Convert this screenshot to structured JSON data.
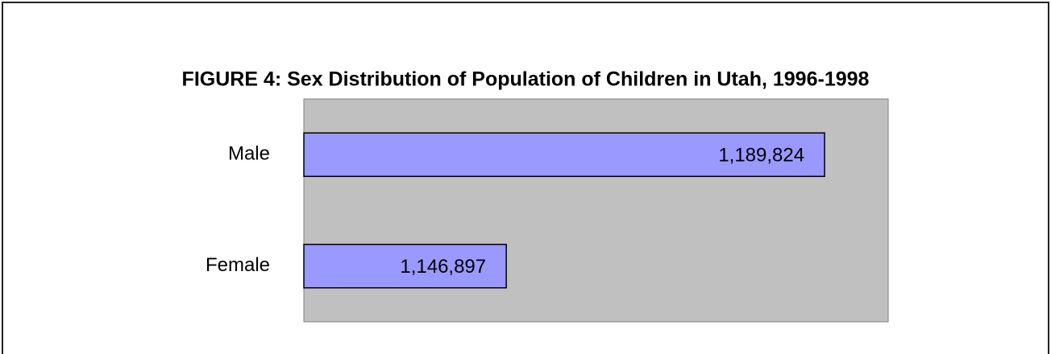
{
  "chart_data": {
    "type": "hbar",
    "title": "FIGURE 4: Sex Distribution of Population of Children in Utah, 1996-1998",
    "categories": [
      "Male",
      "Female"
    ],
    "values": [
      1189824,
      1146897
    ],
    "value_labels": [
      "1,189,824",
      "1,146,897"
    ],
    "color": "#9999ff",
    "xlim": [
      1119600,
      1198400
    ]
  }
}
